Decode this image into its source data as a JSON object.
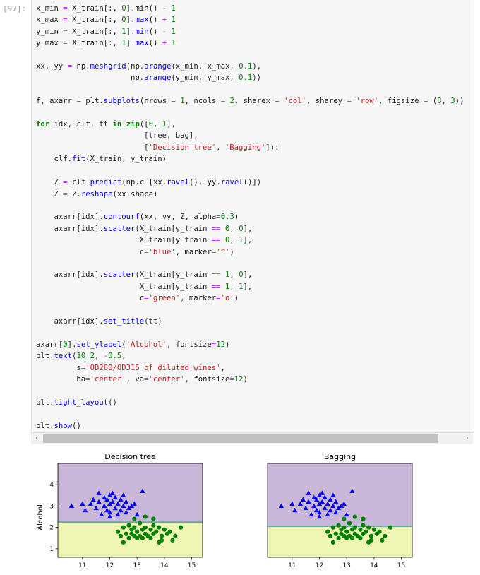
{
  "cell": {
    "prompt": "[97]:",
    "code_lines": [
      "x_min = X_train[:, 0].min() - 1",
      "x_max = X_train[:, 0].max() + 1",
      "y_min = X_train[:, 1].min() - 1",
      "y_max = X_train[:, 1].max() + 1",
      "",
      "xx, yy = np.meshgrid(np.arange(x_min, x_max, 0.1),",
      "                     np.arange(y_min, y_max, 0.1))",
      "",
      "f, axarr = plt.subplots(nrows = 1, ncols = 2, sharex = 'col', sharey = 'row', figsize = (8, 3))",
      "",
      "for idx, clf, tt in zip([0, 1],",
      "                        [tree, bag],",
      "                        ['Decision tree', 'Bagging']):",
      "    clf.fit(X_train, y_train)",
      "",
      "    Z = clf.predict(np.c_[xx.ravel(), yy.ravel()])",
      "    Z = Z.reshape(xx.shape)",
      "",
      "    axarr[idx].contourf(xx, yy, Z, alpha=0.3)",
      "    axarr[idx].scatter(X_train[y_train == 0, 0],",
      "                       X_train[y_train == 0, 1],",
      "                       c='blue', marker='^')",
      "",
      "    axarr[idx].scatter(X_train[y_train == 1, 0],",
      "                       X_train[y_train == 1, 1],",
      "                       c='green', marker='o')",
      "",
      "    axarr[idx].set_title(tt)",
      "",
      "axarr[0].set_ylabel('Alcohol', fontsize=12)",
      "plt.text(10.2, -0.5,",
      "         s='OD280/OD315 of diluted wines',",
      "         ha='center', va='center', fontsize=12)",
      "",
      "plt.tight_layout()",
      "",
      "plt.show()"
    ]
  },
  "scrollbar": {
    "left_arrow": "‹",
    "right_arrow": "›"
  },
  "colors": {
    "class0_region": "#c8b7d6",
    "class1_region": "#eff6b4",
    "boundary": "#6aaeaa",
    "class0_marker": "#0000ff",
    "class1_marker": "#008000"
  },
  "chart_data": [
    {
      "type": "scatter",
      "title": "Decision tree",
      "ylabel": "Alcohol",
      "xlim": [
        10.1,
        15.4
      ],
      "ylim": [
        0.6,
        5.0
      ],
      "xticks": [
        11,
        12,
        13,
        14,
        15
      ],
      "yticks": [
        1,
        2,
        3,
        4
      ],
      "regions": [
        {
          "label": "0",
          "y_from": 2.25,
          "y_to": 5.0
        },
        {
          "label": "1",
          "y_from": 0.6,
          "y_to": 2.25
        }
      ],
      "series": [
        {
          "marker": "^",
          "points": [
            [
              10.6,
              3.0
            ],
            [
              11.0,
              3.1
            ],
            [
              11.1,
              2.8
            ],
            [
              11.3,
              3.1
            ],
            [
              11.4,
              3.3
            ],
            [
              11.5,
              2.9
            ],
            [
              11.6,
              3.6
            ],
            [
              11.7,
              2.6
            ],
            [
              11.8,
              3.4
            ],
            [
              11.8,
              3.0
            ],
            [
              11.9,
              2.8
            ],
            [
              11.9,
              3.3
            ],
            [
              12.0,
              3.5
            ],
            [
              12.0,
              2.7
            ],
            [
              12.0,
              3.1
            ],
            [
              12.1,
              3.6
            ],
            [
              12.1,
              3.2
            ],
            [
              12.2,
              2.9
            ],
            [
              12.2,
              3.4
            ],
            [
              12.3,
              3.1
            ],
            [
              12.3,
              2.6
            ],
            [
              12.4,
              3.3
            ],
            [
              12.4,
              2.8
            ],
            [
              12.5,
              3.5
            ],
            [
              12.5,
              3.0
            ],
            [
              12.6,
              2.7
            ],
            [
              12.6,
              3.2
            ],
            [
              12.7,
              2.9
            ],
            [
              12.8,
              3.0
            ],
            [
              12.9,
              3.1
            ],
            [
              13.0,
              2.6
            ],
            [
              13.2,
              3.7
            ],
            [
              12.0,
              2.5
            ],
            [
              11.6,
              3.2
            ]
          ]
        },
        {
          "marker": "o",
          "points": [
            [
              12.3,
              1.8
            ],
            [
              12.4,
              1.6
            ],
            [
              12.5,
              2.0
            ],
            [
              12.5,
              1.3
            ],
            [
              12.6,
              1.7
            ],
            [
              12.7,
              1.5
            ],
            [
              12.7,
              2.1
            ],
            [
              12.8,
              1.7
            ],
            [
              12.8,
              1.9
            ],
            [
              12.9,
              1.6
            ],
            [
              12.9,
              2.0
            ],
            [
              13.0,
              1.5
            ],
            [
              13.0,
              1.8
            ],
            [
              13.1,
              2.2
            ],
            [
              13.1,
              1.6
            ],
            [
              13.2,
              1.9
            ],
            [
              13.2,
              1.5
            ],
            [
              13.3,
              1.7
            ],
            [
              13.3,
              2.0
            ],
            [
              13.4,
              1.6
            ],
            [
              13.5,
              1.9
            ],
            [
              13.5,
              1.5
            ],
            [
              13.6,
              2.1
            ],
            [
              13.6,
              1.7
            ],
            [
              13.7,
              1.8
            ],
            [
              13.8,
              2.0
            ],
            [
              13.9,
              1.6
            ],
            [
              13.9,
              1.4
            ],
            [
              14.0,
              1.9
            ],
            [
              14.1,
              1.7
            ],
            [
              14.2,
              1.8
            ],
            [
              14.4,
              1.6
            ],
            [
              14.6,
              2.0
            ],
            [
              13.8,
              1.3
            ],
            [
              14.3,
              1.4
            ],
            [
              12.9,
              2.4
            ],
            [
              13.3,
              2.5
            ],
            [
              13.6,
              2.4
            ]
          ]
        }
      ]
    },
    {
      "type": "scatter",
      "title": "Bagging",
      "xlim": [
        10.1,
        15.4
      ],
      "ylim": [
        0.6,
        5.0
      ],
      "xticks": [
        11,
        12,
        13,
        14,
        15
      ],
      "regions": [
        {
          "label": "0",
          "y_from": 2.05,
          "y_to": 5.0
        },
        {
          "label": "1",
          "y_from": 0.6,
          "y_to": 2.05
        }
      ],
      "series": [
        {
          "marker": "^",
          "points": [
            [
              10.6,
              3.0
            ],
            [
              11.0,
              3.1
            ],
            [
              11.1,
              2.8
            ],
            [
              11.3,
              3.1
            ],
            [
              11.4,
              3.3
            ],
            [
              11.5,
              2.9
            ],
            [
              11.6,
              3.6
            ],
            [
              11.7,
              2.6
            ],
            [
              11.8,
              3.4
            ],
            [
              11.8,
              3.0
            ],
            [
              11.9,
              2.8
            ],
            [
              11.9,
              3.3
            ],
            [
              12.0,
              3.5
            ],
            [
              12.0,
              2.7
            ],
            [
              12.0,
              3.1
            ],
            [
              12.1,
              3.6
            ],
            [
              12.1,
              3.2
            ],
            [
              12.2,
              2.9
            ],
            [
              12.2,
              3.4
            ],
            [
              12.3,
              3.1
            ],
            [
              12.3,
              2.6
            ],
            [
              12.4,
              3.3
            ],
            [
              12.4,
              2.8
            ],
            [
              12.5,
              3.5
            ],
            [
              12.5,
              3.0
            ],
            [
              12.6,
              2.7
            ],
            [
              12.6,
              3.2
            ],
            [
              12.7,
              2.9
            ],
            [
              12.8,
              3.0
            ],
            [
              12.9,
              3.1
            ],
            [
              13.0,
              2.6
            ],
            [
              13.2,
              3.7
            ],
            [
              12.0,
              2.5
            ],
            [
              11.6,
              3.2
            ]
          ]
        },
        {
          "marker": "o",
          "points": [
            [
              12.3,
              1.8
            ],
            [
              12.4,
              1.6
            ],
            [
              12.5,
              2.0
            ],
            [
              12.5,
              1.3
            ],
            [
              12.6,
              1.7
            ],
            [
              12.7,
              1.5
            ],
            [
              12.7,
              2.1
            ],
            [
              12.8,
              1.7
            ],
            [
              12.8,
              1.9
            ],
            [
              12.9,
              1.6
            ],
            [
              12.9,
              2.0
            ],
            [
              13.0,
              1.5
            ],
            [
              13.0,
              1.8
            ],
            [
              13.1,
              2.2
            ],
            [
              13.1,
              1.6
            ],
            [
              13.2,
              1.9
            ],
            [
              13.2,
              1.5
            ],
            [
              13.3,
              1.7
            ],
            [
              13.3,
              2.0
            ],
            [
              13.4,
              1.6
            ],
            [
              13.5,
              1.9
            ],
            [
              13.5,
              1.5
            ],
            [
              13.6,
              2.1
            ],
            [
              13.6,
              1.7
            ],
            [
              13.7,
              1.8
            ],
            [
              13.8,
              2.0
            ],
            [
              13.9,
              1.6
            ],
            [
              13.9,
              1.4
            ],
            [
              14.0,
              1.9
            ],
            [
              14.1,
              1.7
            ],
            [
              14.2,
              1.8
            ],
            [
              14.4,
              1.6
            ],
            [
              14.6,
              2.0
            ],
            [
              13.8,
              1.3
            ],
            [
              14.3,
              1.4
            ],
            [
              12.9,
              2.4
            ],
            [
              13.3,
              2.5
            ],
            [
              13.6,
              2.4
            ]
          ]
        }
      ]
    }
  ]
}
